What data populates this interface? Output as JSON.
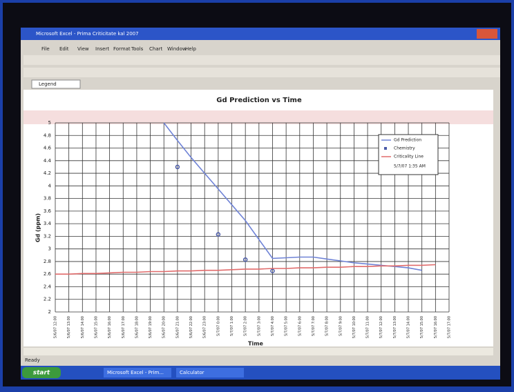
{
  "window": {
    "title": "Microsoft Excel - Prima Criticitate kal 2007",
    "menu": [
      "File",
      "Edit",
      "View",
      "Insert",
      "Format",
      "Tools",
      "Chart",
      "Window",
      "Help"
    ],
    "name_box": "Legend",
    "status": "Ready"
  },
  "taskbar": {
    "start": "start",
    "buttons": [
      "Microsoft Excel - Prim...",
      "Calculator"
    ]
  },
  "chart_data": {
    "type": "line",
    "title": "Gd Prediction vs Time",
    "x_label": "Time",
    "y_label": "Gd (ppm)",
    "categories": [
      "5/6/07 12:00",
      "5/6/07 13:00",
      "5/6/07 14:00",
      "5/6/07 15:00",
      "5/6/07 16:00",
      "5/6/07 17:00",
      "5/6/07 18:00",
      "5/6/07 19:00",
      "5/6/07 20:00",
      "5/6/07 21:00",
      "5/6/07 22:00",
      "5/6/07 23:00",
      "5/7/07 0:00",
      "5/7/07 1:00",
      "5/7/07 2:00",
      "5/7/07 3:00",
      "5/7/07 4:00",
      "5/7/07 5:00",
      "5/7/07 6:00",
      "5/7/07 7:00",
      "5/7/07 8:00",
      "5/7/07 9:00",
      "5/7/07 10:00",
      "5/7/07 11:00",
      "5/7/07 12:00",
      "5/7/07 13:00",
      "5/7/07 14:00",
      "5/7/07 15:00",
      "5/7/07 16:00",
      "5/7/07 17:00"
    ],
    "series": [
      {
        "name": "Gd Prediction",
        "color": "#6f83d6",
        "markers": false,
        "values": [
          null,
          null,
          null,
          null,
          null,
          null,
          null,
          null,
          5.0,
          4.72,
          4.45,
          4.2,
          3.95,
          3.7,
          3.45,
          3.15,
          2.85,
          2.86,
          2.87,
          2.87,
          2.84,
          2.81,
          2.78,
          2.76,
          2.74,
          2.72,
          2.7,
          2.66,
          null,
          null
        ]
      },
      {
        "name": "Chemistry",
        "color": "#4a5aa8",
        "markers": true,
        "values": [
          null,
          null,
          null,
          null,
          null,
          null,
          null,
          null,
          null,
          4.3,
          null,
          null,
          3.23,
          null,
          2.83,
          null,
          2.65,
          null,
          null,
          null,
          null,
          null,
          null,
          null,
          null,
          null,
          null,
          null,
          null,
          null
        ]
      },
      {
        "name": "Criticality Line",
        "color": "#e06a6a",
        "markers": false,
        "values": [
          2.6,
          2.6,
          2.61,
          2.61,
          2.62,
          2.63,
          2.63,
          2.64,
          2.64,
          2.65,
          2.65,
          2.66,
          2.66,
          2.67,
          2.68,
          2.68,
          2.69,
          2.69,
          2.7,
          2.7,
          2.71,
          2.71,
          2.72,
          2.72,
          2.73,
          2.73,
          2.74,
          2.74,
          2.75,
          null
        ]
      }
    ],
    "legend_note": "5/7/07 1:35 AM",
    "legend": "upper right",
    "ylim": [
      2,
      5
    ],
    "yticks": [
      2,
      2.2,
      2.4,
      2.6,
      2.8,
      3,
      3.2,
      3.4,
      3.6,
      3.8,
      4,
      4.2,
      4.4,
      4.6,
      4.8,
      5
    ],
    "grid": true
  }
}
